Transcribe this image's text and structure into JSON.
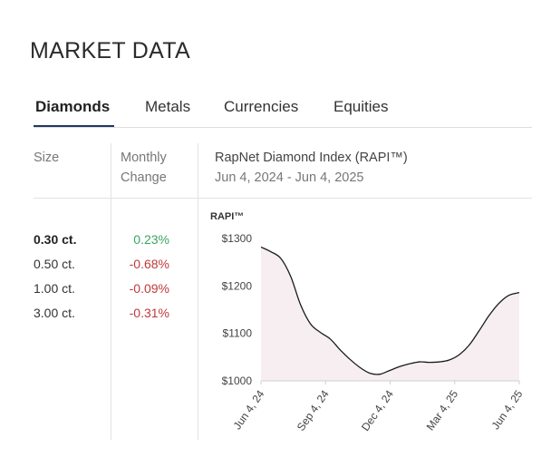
{
  "page_title": "MARKET DATA",
  "tabs": [
    {
      "label": "Diamonds",
      "active": true
    },
    {
      "label": "Metals",
      "active": false
    },
    {
      "label": "Currencies",
      "active": false
    },
    {
      "label": "Equities",
      "active": false
    }
  ],
  "table": {
    "size_header": "Size",
    "change_header_line1": "Monthly",
    "change_header_line2": "Change",
    "index_title": "RapNet Diamond Index (RAPI™)",
    "index_range": "Jun 4, 2024 - Jun 4, 2025",
    "rows": [
      {
        "size": "0.30 ct.",
        "change": "0.23%",
        "direction": "up"
      },
      {
        "size": "0.50 ct.",
        "change": "-0.68%",
        "direction": "down"
      },
      {
        "size": "1.00 ct.",
        "change": "-0.09%",
        "direction": "down"
      },
      {
        "size": "3.00 ct.",
        "change": "-0.31%",
        "direction": "down"
      }
    ]
  },
  "colors": {
    "positive": "#3aa561",
    "negative": "#c0393b",
    "accent": "#1e3a5f",
    "area_fill": "#f7eef1",
    "line": "#1a1a1a"
  },
  "chart_data": {
    "type": "area",
    "ylabel": "RAPI™",
    "ylim": [
      1000,
      1300
    ],
    "yticks": [
      1000,
      1100,
      1200,
      1300
    ],
    "ytick_labels": [
      "$1000",
      "$1100",
      "$1200",
      "$1300"
    ],
    "xticks": [
      "Jun 4, 24",
      "Sep 4, 24",
      "Dec 4, 24",
      "Mar 4, 25",
      "Jun 4, 25"
    ],
    "x": [
      "2024-06-04",
      "2024-06-18",
      "2024-07-02",
      "2024-07-16",
      "2024-07-30",
      "2024-08-13",
      "2024-08-27",
      "2024-09-10",
      "2024-09-24",
      "2024-10-08",
      "2024-10-22",
      "2024-11-05",
      "2024-11-19",
      "2024-12-03",
      "2024-12-17",
      "2024-12-31",
      "2025-01-14",
      "2025-01-28",
      "2025-02-11",
      "2025-02-25",
      "2025-03-11",
      "2025-03-25",
      "2025-04-08",
      "2025-04-22",
      "2025-05-06",
      "2025-05-20",
      "2025-06-04"
    ],
    "values": [
      1282,
      1272,
      1258,
      1220,
      1160,
      1120,
      1102,
      1088,
      1065,
      1045,
      1028,
      1016,
      1014,
      1022,
      1030,
      1036,
      1040,
      1039,
      1040,
      1044,
      1055,
      1075,
      1105,
      1137,
      1163,
      1180,
      1186
    ],
    "grid": false,
    "legend": "none"
  }
}
